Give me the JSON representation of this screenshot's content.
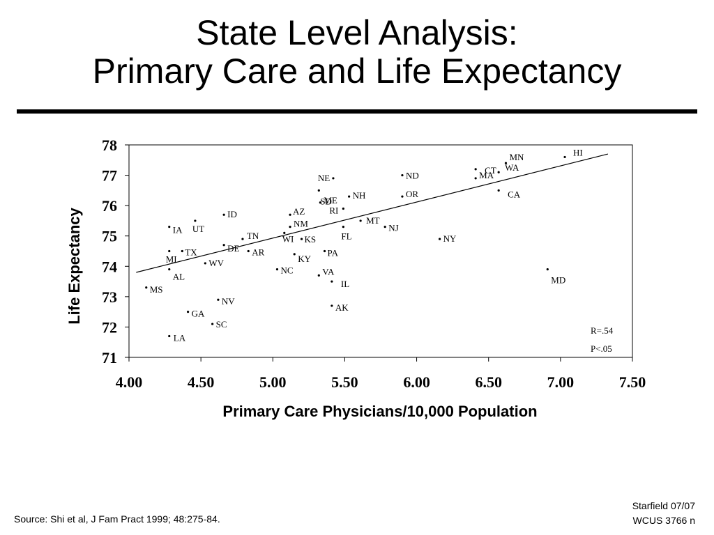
{
  "title": {
    "line1": "State Level Analysis:",
    "line2": "Primary Care and Life Expectancy"
  },
  "footer": {
    "source": "Source: Shi et al, J Fam Pract 1999; 48:275-84.",
    "credit_line1": "Starfield 07/07",
    "credit_line2": "WCUS 3766 n"
  },
  "chart_data": {
    "type": "scatter",
    "xlabel": "Primary Care Physicians/10,000 Population",
    "ylabel": "Life Expectancy",
    "xlim": [
      4.0,
      7.5
    ],
    "ylim": [
      71,
      78
    ],
    "xticks": [
      "4.00",
      "4.50",
      "5.00",
      "5.50",
      "6.00",
      "6.50",
      "7.00",
      "7.50"
    ],
    "yticks": [
      "71",
      "72",
      "73",
      "74",
      "75",
      "76",
      "77",
      "78"
    ],
    "grid": false,
    "annotations": {
      "r": "R=.54",
      "p": "P<.05"
    },
    "trendline": {
      "x": [
        4.05,
        7.33
      ],
      "y": [
        73.8,
        77.7
      ]
    },
    "points": [
      {
        "label": "HI",
        "x": 7.03,
        "y": 77.6
      },
      {
        "label": "MN",
        "x": 6.62,
        "y": 77.4
      },
      {
        "label": "CT",
        "x": 6.41,
        "y": 77.2
      },
      {
        "label": "WA",
        "x": 6.57,
        "y": 77.1
      },
      {
        "label": "MA",
        "x": 6.41,
        "y": 76.9
      },
      {
        "label": "CA",
        "x": 6.57,
        "y": 76.5
      },
      {
        "label": "ND",
        "x": 5.9,
        "y": 77.0
      },
      {
        "label": "OR",
        "x": 5.9,
        "y": 76.3
      },
      {
        "label": "NE",
        "x": 5.42,
        "y": 76.9
      },
      {
        "label": "SD",
        "x": 5.32,
        "y": 76.5
      },
      {
        "label": "ME",
        "x": 5.33,
        "y": 76.1
      },
      {
        "label": "NH",
        "x": 5.53,
        "y": 76.3
      },
      {
        "label": "RI",
        "x": 5.49,
        "y": 75.9
      },
      {
        "label": "MT",
        "x": 5.61,
        "y": 75.5
      },
      {
        "label": "NJ",
        "x": 5.78,
        "y": 75.3
      },
      {
        "label": "FL",
        "x": 5.49,
        "y": 75.3
      },
      {
        "label": "NY",
        "x": 6.16,
        "y": 74.9
      },
      {
        "label": "MD",
        "x": 6.91,
        "y": 73.9
      },
      {
        "label": "AZ",
        "x": 5.12,
        "y": 75.7
      },
      {
        "label": "NM",
        "x": 5.12,
        "y": 75.3
      },
      {
        "label": "WI",
        "x": 5.08,
        "y": 75.1
      },
      {
        "label": "KS",
        "x": 5.2,
        "y": 74.9
      },
      {
        "label": "ID",
        "x": 4.66,
        "y": 75.7
      },
      {
        "label": "UT",
        "x": 4.46,
        "y": 75.5
      },
      {
        "label": "IA",
        "x": 4.28,
        "y": 75.3
      },
      {
        "label": "TN",
        "x": 4.79,
        "y": 74.9
      },
      {
        "label": "AR",
        "x": 4.83,
        "y": 74.5
      },
      {
        "label": "PA",
        "x": 5.36,
        "y": 74.5
      },
      {
        "label": "KY",
        "x": 5.15,
        "y": 74.4
      },
      {
        "label": "MI",
        "x": 4.28,
        "y": 74.5
      },
      {
        "label": "TX",
        "x": 4.37,
        "y": 74.5
      },
      {
        "label": "DE",
        "x": 4.66,
        "y": 74.7
      },
      {
        "label": "WV",
        "x": 4.53,
        "y": 74.1
      },
      {
        "label": "AL",
        "x": 4.28,
        "y": 73.9
      },
      {
        "label": "NC",
        "x": 5.03,
        "y": 73.9
      },
      {
        "label": "VA",
        "x": 5.32,
        "y": 73.7
      },
      {
        "label": "IL",
        "x": 5.41,
        "y": 73.5
      },
      {
        "label": "MS",
        "x": 4.12,
        "y": 73.3
      },
      {
        "label": "NV",
        "x": 4.62,
        "y": 72.9
      },
      {
        "label": "AK",
        "x": 5.41,
        "y": 72.7
      },
      {
        "label": "GA",
        "x": 4.41,
        "y": 72.5
      },
      {
        "label": "SC",
        "x": 4.58,
        "y": 72.1
      },
      {
        "label": "LA",
        "x": 4.28,
        "y": 71.7
      }
    ]
  }
}
